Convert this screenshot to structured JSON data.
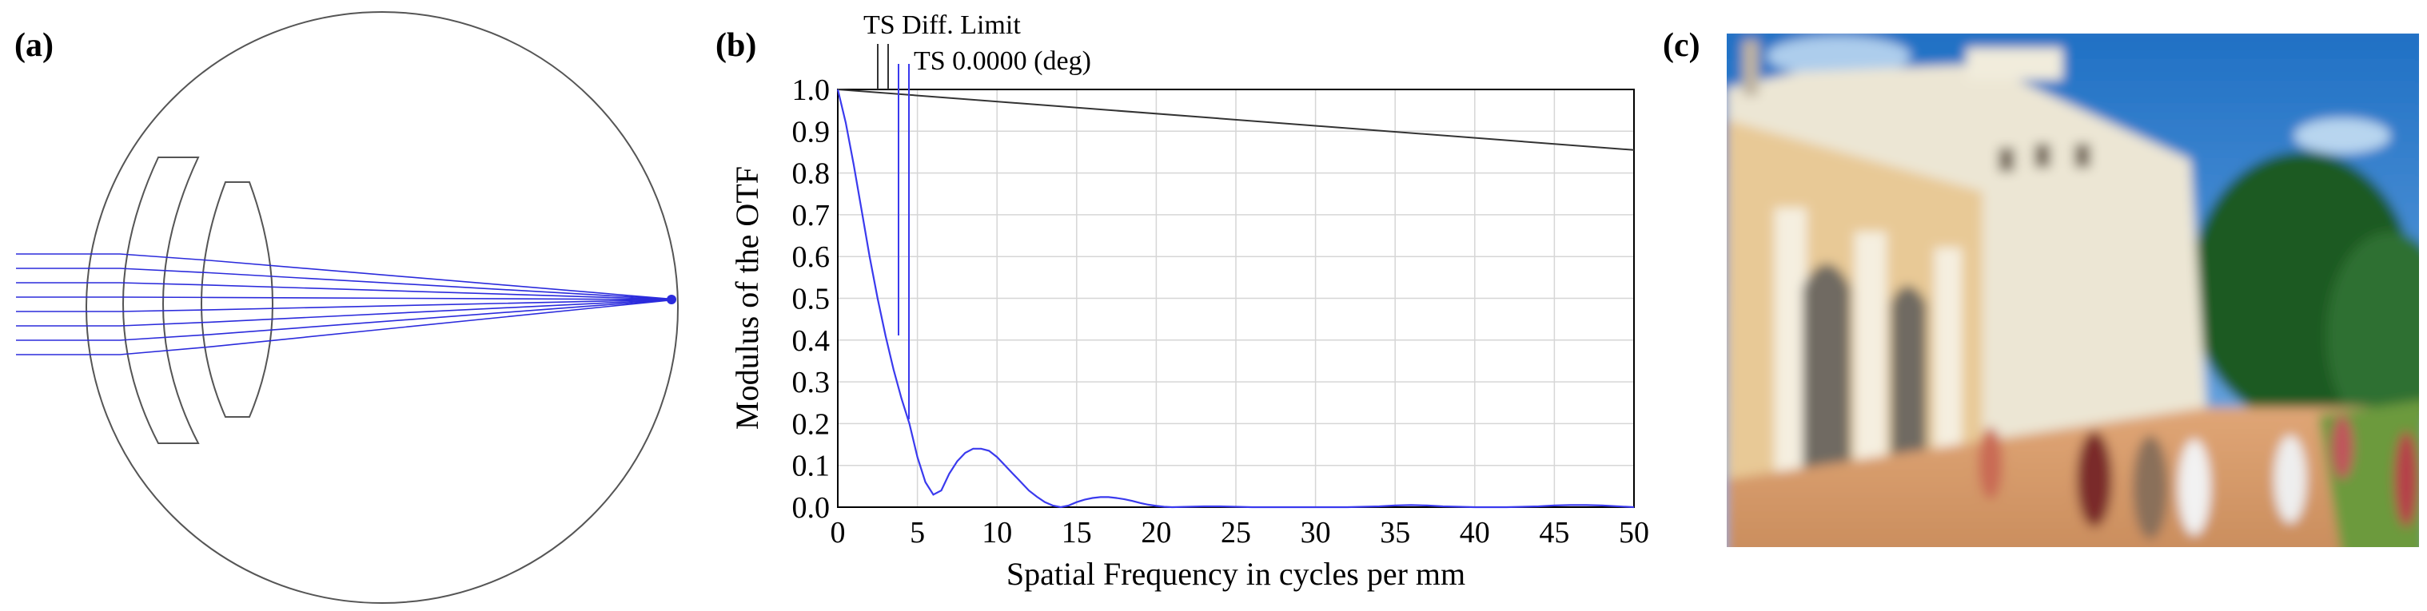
{
  "panels": {
    "a_label": "(a)",
    "b_label": "(b)",
    "c_label": "(c)"
  },
  "colors": {
    "ray": "#2b2bdc",
    "optics": "#555555",
    "mtf_blue": "#3a3aee",
    "diff_limit": "#333333",
    "grid": "#d6d6d6"
  },
  "chart_data": {
    "type": "line",
    "xlabel": "Spatial Frequency in cycles per mm",
    "ylabel": "Modulus of the OTF",
    "xlim": [
      0,
      50
    ],
    "ylim": [
      0,
      1.0
    ],
    "x_ticks": [
      "0",
      "5",
      "10",
      "15",
      "20",
      "25",
      "30",
      "35",
      "40",
      "45",
      "50"
    ],
    "y_ticks": [
      "0.0",
      "0.1",
      "0.2",
      "0.3",
      "0.4",
      "0.5",
      "0.6",
      "0.7",
      "0.8",
      "0.9",
      "1.0"
    ],
    "grid": true,
    "legend_labels": [
      "TS Diff. Limit",
      "TS 0.0000 (deg)"
    ],
    "series": [
      {
        "name": "TS Diff. Limit",
        "x": [
          0,
          50
        ],
        "y": [
          1.0,
          0.855
        ]
      },
      {
        "name": "TS 0.0000 (deg)",
        "x": [
          0,
          0.5,
          1,
          1.5,
          2,
          2.5,
          3,
          3.5,
          4,
          4.5,
          5,
          5.5,
          6,
          6.5,
          7,
          7.5,
          8,
          8.5,
          9,
          9.5,
          10,
          10.5,
          11,
          11.5,
          12,
          12.5,
          13,
          13.5,
          14,
          14.5,
          15,
          15.5,
          16,
          16.5,
          17,
          17.5,
          18,
          18.5,
          19,
          19.5,
          20,
          20.5,
          21,
          22,
          23,
          24,
          25,
          26,
          28,
          30,
          32,
          34,
          35,
          36,
          37,
          38,
          40,
          42,
          44,
          45,
          46,
          47,
          48,
          50
        ],
        "y": [
          1.0,
          0.92,
          0.82,
          0.71,
          0.6,
          0.5,
          0.41,
          0.33,
          0.26,
          0.2,
          0.12,
          0.06,
          0.03,
          0.04,
          0.08,
          0.11,
          0.13,
          0.14,
          0.14,
          0.135,
          0.12,
          0.1,
          0.08,
          0.06,
          0.04,
          0.025,
          0.012,
          0.004,
          0.0,
          0.004,
          0.012,
          0.018,
          0.022,
          0.024,
          0.024,
          0.022,
          0.019,
          0.015,
          0.01,
          0.006,
          0.003,
          0.001,
          0.0,
          0.001,
          0.002,
          0.002,
          0.001,
          0.0,
          0.0,
          0.0,
          0.0,
          0.002,
          0.004,
          0.005,
          0.004,
          0.002,
          0.0,
          0.0,
          0.002,
          0.004,
          0.005,
          0.005,
          0.004,
          0.0
        ]
      }
    ]
  }
}
